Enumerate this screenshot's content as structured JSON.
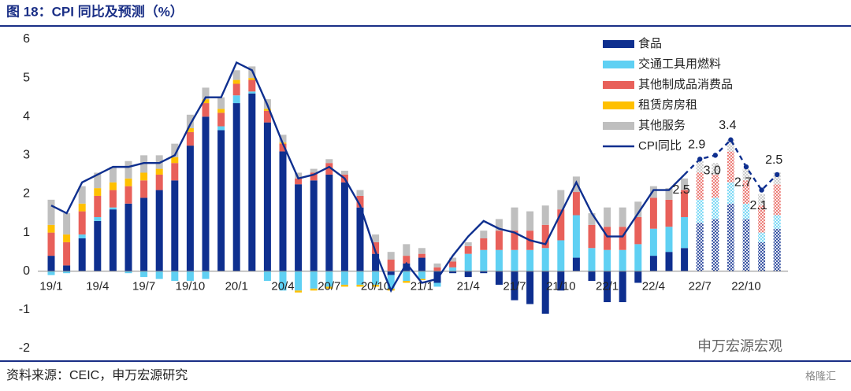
{
  "chart_data": {
    "type": "stacked_bar_line",
    "title": "图 18：CPI 同比及预测（%）",
    "source": "资料来源：CEIC，申万宏源研究",
    "watermarks": [
      "申万宏源宏观",
      "格隆汇"
    ],
    "categories": [
      "19/1",
      null,
      null,
      "19/4",
      null,
      null,
      "19/7",
      null,
      null,
      "19/10",
      null,
      null,
      "20/1",
      null,
      null,
      "20/4",
      null,
      null,
      "20/7",
      null,
      null,
      "20/10",
      null,
      null,
      "21/1",
      null,
      null,
      "21/4",
      null,
      null,
      "21/7",
      null,
      null,
      "21/10",
      null,
      null,
      "22/1",
      null,
      null,
      "22/4",
      null,
      null,
      "22/7",
      null,
      null,
      "22/10",
      null,
      null
    ],
    "ylim": [
      -2,
      6
    ],
    "yticks": [
      -2,
      -1,
      0,
      1,
      2,
      3,
      4,
      5,
      6
    ],
    "legend": "upper-right",
    "pattern_from": 42,
    "series": [
      {
        "name": "食品",
        "color": "#0e2f8f",
        "values": [
          0.4,
          0.15,
          0.85,
          1.3,
          1.6,
          1.75,
          1.9,
          2.1,
          2.35,
          3.25,
          4.0,
          3.65,
          4.35,
          4.6,
          3.85,
          3.1,
          2.25,
          2.35,
          2.5,
          2.3,
          1.65,
          0.45,
          -0.1,
          0.2,
          0.35,
          -0.3,
          -0.05,
          -0.15,
          -0.05,
          -0.35,
          -0.75,
          -0.85,
          -1.1,
          -0.5,
          0.35,
          -0.25,
          -0.8,
          -0.8,
          -0.3,
          0.4,
          0.5,
          0.6,
          1.25,
          1.35,
          1.75,
          1.35,
          0.75,
          1.1
        ]
      },
      {
        "name": "交通工具用燃料",
        "color": "#5fd0f3",
        "values": [
          -0.1,
          -0.05,
          0.1,
          0.1,
          0.05,
          -0.05,
          -0.15,
          -0.2,
          -0.25,
          -0.25,
          -0.2,
          0.1,
          0.2,
          0.05,
          -0.25,
          -0.5,
          -0.5,
          -0.45,
          -0.4,
          -0.35,
          -0.35,
          -0.35,
          -0.35,
          -0.25,
          -0.2,
          -0.1,
          0.1,
          0.45,
          0.55,
          0.55,
          0.55,
          0.55,
          0.6,
          0.8,
          1.1,
          0.6,
          0.55,
          0.55,
          0.7,
          0.7,
          0.65,
          0.8,
          0.6,
          0.55,
          0.55,
          0.4,
          0.25,
          0.35
        ]
      },
      {
        "name": "其他制成品消费品",
        "color": "#e8605a",
        "values": [
          0.6,
          0.6,
          0.6,
          0.55,
          0.45,
          0.45,
          0.45,
          0.4,
          0.45,
          0.35,
          0.35,
          0.35,
          0.3,
          0.3,
          0.3,
          0.2,
          0.15,
          0.2,
          0.3,
          0.2,
          0.3,
          0.3,
          0.3,
          0.2,
          0.1,
          0.1,
          0.15,
          0.2,
          0.3,
          0.5,
          0.5,
          0.5,
          0.6,
          0.8,
          0.6,
          0.6,
          0.6,
          0.6,
          0.7,
          0.8,
          0.7,
          0.7,
          0.7,
          0.6,
          0.8,
          0.6,
          0.7,
          0.8
        ]
      },
      {
        "name": "租赁房房租",
        "color": "#ffc000",
        "values": [
          0.2,
          0.2,
          0.2,
          0.2,
          0.2,
          0.2,
          0.2,
          0.15,
          0.15,
          0.1,
          0.1,
          0.1,
          0.1,
          0.05,
          0.05,
          0.03,
          -0.05,
          -0.05,
          -0.05,
          -0.05,
          -0.05,
          -0.05,
          -0.05,
          -0.05,
          -0.03,
          0,
          0,
          0,
          0,
          0,
          0,
          0,
          0,
          0,
          0,
          0,
          0,
          0,
          0,
          0,
          0,
          0,
          0,
          0,
          0,
          0,
          0,
          0
        ]
      },
      {
        "name": "其他服务",
        "color": "#bfbfbf",
        "values": [
          0.65,
          0.55,
          0.45,
          0.4,
          0.4,
          0.45,
          0.45,
          0.35,
          0.35,
          0.35,
          0.3,
          0.3,
          0.25,
          0.3,
          0.25,
          0.2,
          0.15,
          0.1,
          0.1,
          0.1,
          0.15,
          0.2,
          0.2,
          0.3,
          0.15,
          0.1,
          0.1,
          0.1,
          0.2,
          0.3,
          0.6,
          0.5,
          0.5,
          0.5,
          0.4,
          0.3,
          0.5,
          0.5,
          0.4,
          0.3,
          0.3,
          0.3,
          0.3,
          0.3,
          0.3,
          0.3,
          0.3,
          0.3
        ]
      }
    ],
    "line": {
      "name": "CPI同比",
      "color": "#0e2f8f",
      "dash_from": 41,
      "values": [
        1.7,
        1.5,
        2.3,
        2.5,
        2.7,
        2.7,
        2.8,
        2.8,
        3.0,
        3.8,
        4.5,
        4.5,
        5.4,
        5.2,
        4.3,
        3.3,
        2.4,
        2.5,
        2.7,
        2.4,
        1.7,
        0.5,
        -0.5,
        0.2,
        -0.3,
        -0.2,
        0.4,
        0.9,
        1.3,
        1.1,
        1.0,
        0.8,
        0.7,
        1.5,
        2.3,
        1.5,
        0.9,
        0.9,
        1.5,
        2.1,
        2.1,
        2.5,
        2.9,
        3.0,
        3.4,
        2.7,
        2.1,
        2.5
      ],
      "value_labels": [
        null,
        null,
        null,
        null,
        null,
        null,
        null,
        null,
        null,
        null,
        null,
        null,
        null,
        null,
        null,
        null,
        null,
        null,
        null,
        null,
        null,
        null,
        null,
        null,
        null,
        null,
        null,
        null,
        null,
        null,
        null,
        null,
        null,
        null,
        null,
        null,
        null,
        null,
        null,
        null,
        null,
        "2.5",
        "2.9",
        "3.0",
        "3.4",
        "2.7",
        "2.1",
        "2.5"
      ]
    }
  }
}
